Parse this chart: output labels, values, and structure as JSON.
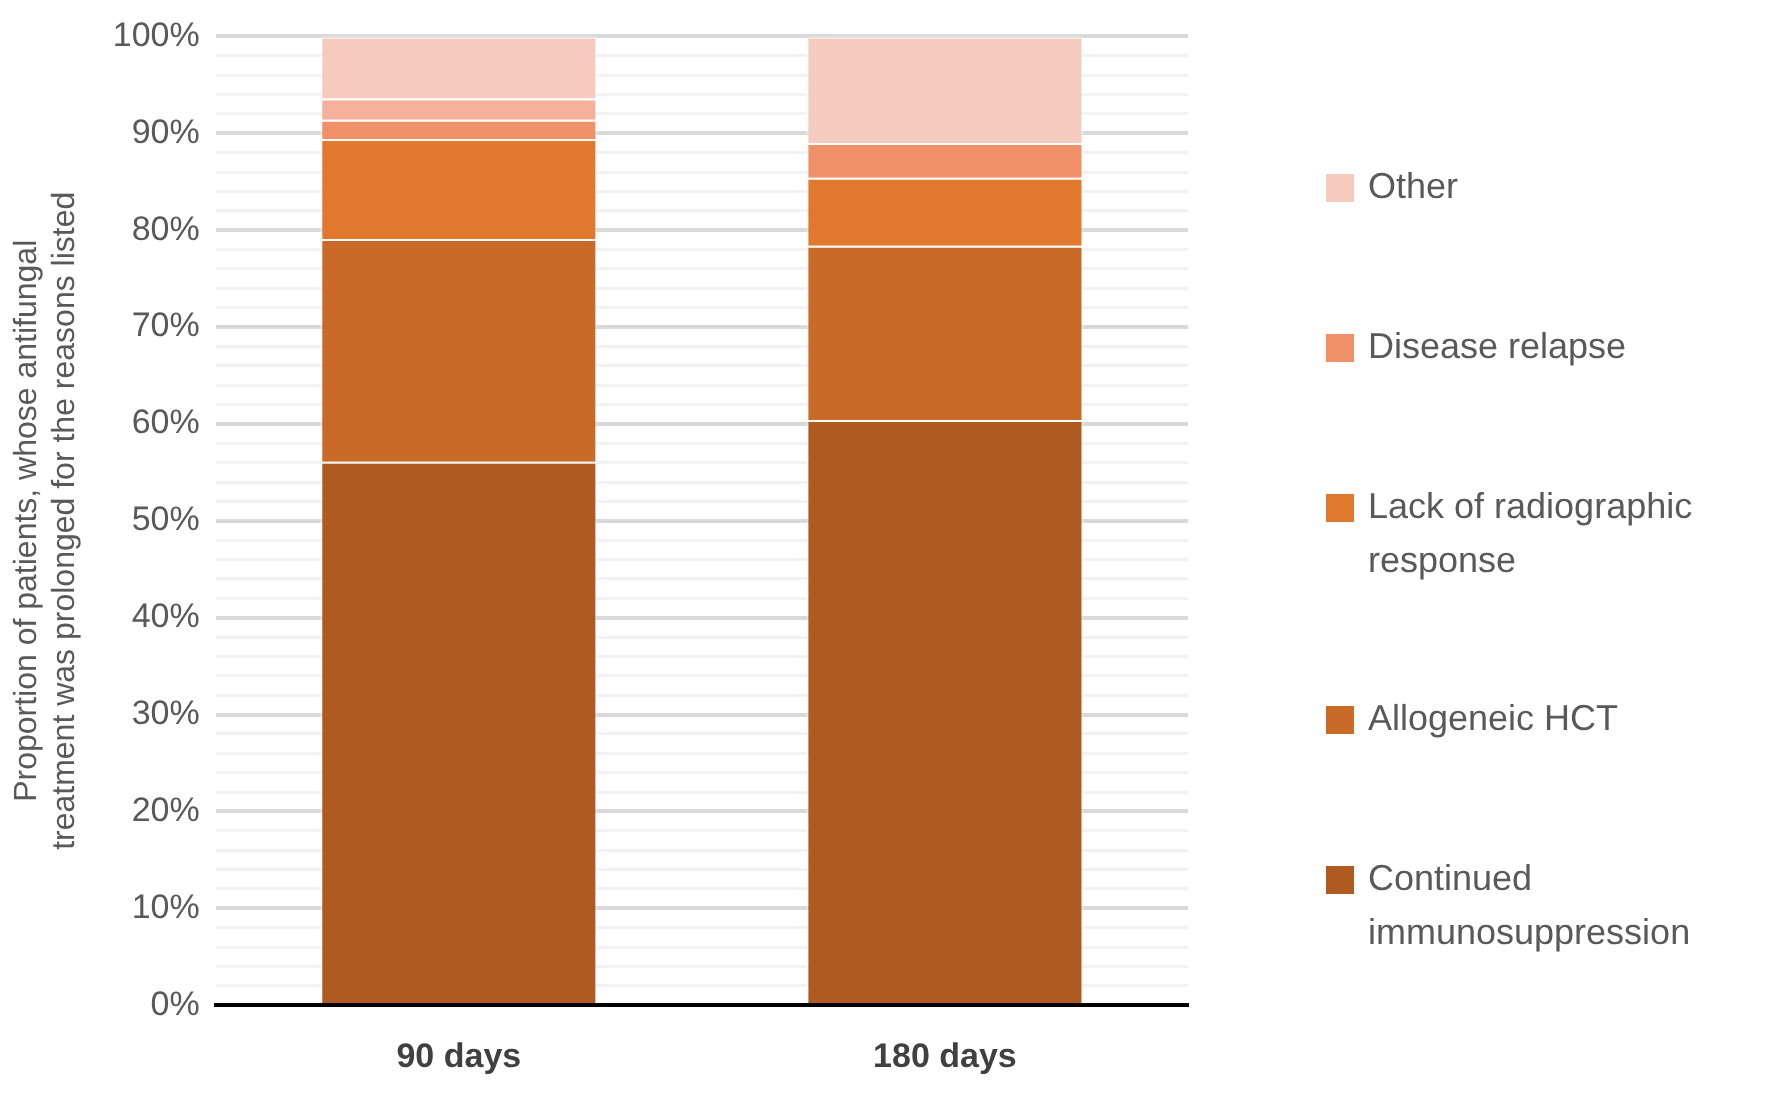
{
  "chart_data": {
    "type": "bar",
    "stacked": true,
    "ylabel": "Proportion of patients, whose antifungal treatment was prolonged for the reasons listed",
    "categories": [
      "90 days",
      "180 days"
    ],
    "series": [
      {
        "name": "Continued immunosuppression",
        "color": "#ae5a21",
        "values": [
          56.1,
          60.4
        ]
      },
      {
        "name": "Allogeneic HCT",
        "color": "#c96a28",
        "values": [
          23.0,
          18.0
        ]
      },
      {
        "name": "Lack of radiographic response",
        "color": "#e0782e",
        "values": [
          10.3,
          7.0
        ]
      },
      {
        "name": "Disease relapse",
        "color": "#f09068",
        "values": [
          2.0,
          3.6
        ]
      },
      {
        "color": "#f4b09a",
        "values": [
          2.2,
          null
        ]
      },
      {
        "name": "Other",
        "color": "#f6cbbf",
        "values": [
          6.4,
          11.0
        ]
      }
    ],
    "ylim": [
      0,
      100
    ],
    "yticks": [
      {
        "value": 0,
        "label": "0%"
      },
      {
        "value": 2,
        "label": null
      },
      {
        "value": 4,
        "label": null
      },
      {
        "value": 6,
        "label": null
      },
      {
        "value": 8,
        "label": null
      },
      {
        "value": 10,
        "label": "10%"
      },
      {
        "value": 12,
        "label": null
      },
      {
        "value": 14,
        "label": null
      },
      {
        "value": 16,
        "label": null
      },
      {
        "value": 18,
        "label": null
      },
      {
        "value": 20,
        "label": "20%"
      },
      {
        "value": 22,
        "label": null
      },
      {
        "value": 24,
        "label": null
      },
      {
        "value": 26,
        "label": null
      },
      {
        "value": 28,
        "label": null
      },
      {
        "value": 30,
        "label": "30%"
      },
      {
        "value": 32,
        "label": null
      },
      {
        "value": 34,
        "label": null
      },
      {
        "value": 36,
        "label": null
      },
      {
        "value": 38,
        "label": null
      },
      {
        "value": 40,
        "label": "40%"
      },
      {
        "value": 42,
        "label": null
      },
      {
        "value": 44,
        "label": null
      },
      {
        "value": 46,
        "label": null
      },
      {
        "value": 48,
        "label": null
      },
      {
        "value": 50,
        "label": "50%"
      },
      {
        "value": 52,
        "label": null
      },
      {
        "value": 54,
        "label": null
      },
      {
        "value": 56,
        "label": null
      },
      {
        "value": 58,
        "label": null
      },
      {
        "value": 60,
        "label": "60%"
      },
      {
        "value": 62,
        "label": null
      },
      {
        "value": 64,
        "label": null
      },
      {
        "value": 66,
        "label": null
      },
      {
        "value": 68,
        "label": null
      },
      {
        "value": 70,
        "label": "70%"
      },
      {
        "value": 72,
        "label": null
      },
      {
        "value": 74,
        "label": null
      },
      {
        "value": 76,
        "label": null
      },
      {
        "value": 78,
        "label": null
      },
      {
        "value": 80,
        "label": "80%"
      },
      {
        "value": 82,
        "label": null
      },
      {
        "value": 84,
        "label": null
      },
      {
        "value": 86,
        "label": null
      },
      {
        "value": 88,
        "label": null
      },
      {
        "value": 90,
        "label": "90%"
      },
      {
        "value": 92,
        "label": null
      },
      {
        "value": 94,
        "label": null
      },
      {
        "value": 96,
        "label": null
      },
      {
        "value": 98,
        "label": null
      },
      {
        "value": 100,
        "label": "100%"
      }
    ],
    "grid": "y",
    "legend": "right"
  }
}
